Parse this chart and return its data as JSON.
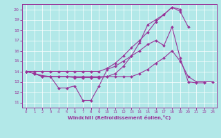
{
  "xlabel": "Windchill (Refroidissement éolien,°C)",
  "background_color": "#b2e8e8",
  "line_color": "#993399",
  "grid_color": "#ffffff",
  "xlim": [
    -0.5,
    23.5
  ],
  "ylim": [
    10.5,
    20.5
  ],
  "xticks": [
    0,
    1,
    2,
    3,
    4,
    5,
    6,
    7,
    8,
    9,
    10,
    11,
    12,
    13,
    14,
    15,
    16,
    17,
    18,
    19,
    20,
    21,
    22,
    23
  ],
  "yticks": [
    11,
    12,
    13,
    14,
    15,
    16,
    17,
    18,
    19,
    20
  ],
  "series": [
    {
      "x": [
        0,
        1,
        2,
        3,
        4,
        5,
        6,
        7,
        8,
        9,
        10,
        11,
        12,
        13,
        14,
        15,
        16,
        17,
        18,
        19,
        20,
        21,
        22
      ],
      "y": [
        14,
        13.8,
        13.6,
        13.5,
        12.4,
        12.4,
        12.6,
        11.2,
        11.2,
        12.6,
        14.2,
        14.5,
        15.0,
        15.5,
        16.0,
        16.6,
        17.0,
        16.5,
        18.3,
        15.3,
        13.0,
        12.9,
        12.9
      ]
    },
    {
      "x": [
        0,
        1,
        2,
        3,
        4,
        5,
        6,
        7,
        8,
        9,
        10,
        11,
        12,
        13,
        14,
        15,
        16,
        17,
        18,
        19,
        20,
        21,
        22,
        23
      ],
      "y": [
        14,
        13.8,
        13.5,
        13.5,
        13.5,
        13.5,
        13.5,
        13.5,
        13.5,
        13.5,
        13.5,
        13.5,
        13.5,
        13.5,
        13.8,
        14.2,
        14.8,
        15.3,
        16.0,
        15.0,
        13.5,
        13.0,
        13.0,
        13.0
      ]
    },
    {
      "x": [
        0,
        1,
        2,
        3,
        4,
        5,
        6,
        7,
        8,
        9,
        10,
        11,
        12,
        13,
        14,
        15,
        16,
        17,
        18,
        19,
        20
      ],
      "y": [
        14,
        13.8,
        13.5,
        13.5,
        13.5,
        13.5,
        13.4,
        13.4,
        13.4,
        13.4,
        13.5,
        13.8,
        14.5,
        15.5,
        16.8,
        18.5,
        19.0,
        19.5,
        20.2,
        19.8,
        18.3
      ]
    },
    {
      "x": [
        0,
        1,
        2,
        3,
        4,
        5,
        6,
        7,
        8,
        9,
        10,
        11,
        12,
        13,
        14,
        15,
        16,
        17,
        18,
        19
      ],
      "y": [
        14,
        14,
        14,
        14,
        14,
        14,
        14,
        14,
        14,
        14,
        14.3,
        14.8,
        15.5,
        16.3,
        17.0,
        17.8,
        18.8,
        19.5,
        20.2,
        20.0
      ]
    }
  ]
}
